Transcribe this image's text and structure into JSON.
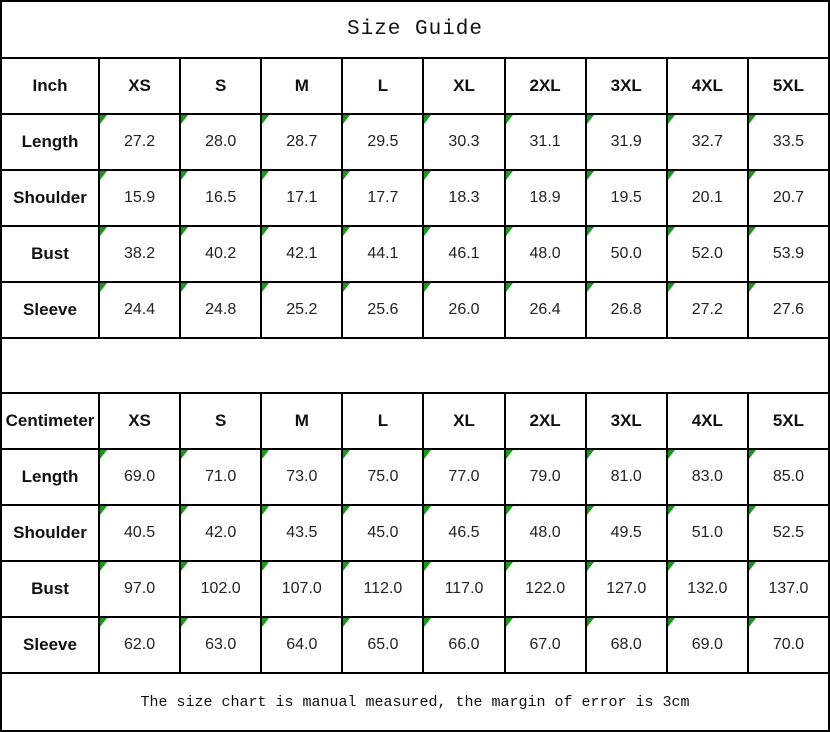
{
  "title": "Size Guide",
  "footer_note": "The size chart is manual measured, the margin of error is 3cm",
  "sizes": [
    "XS",
    "S",
    "M",
    "L",
    "XL",
    "2XL",
    "3XL",
    "4XL",
    "5XL"
  ],
  "inch_table": {
    "unit_label": "Inch",
    "rows": [
      {
        "label": "Length",
        "values": [
          "27.2",
          "28.0",
          "28.7",
          "29.5",
          "30.3",
          "31.1",
          "31.9",
          "32.7",
          "33.5"
        ]
      },
      {
        "label": "Shoulder",
        "values": [
          "15.9",
          "16.5",
          "17.1",
          "17.7",
          "18.3",
          "18.9",
          "19.5",
          "20.1",
          "20.7"
        ]
      },
      {
        "label": "Bust",
        "values": [
          "38.2",
          "40.2",
          "42.1",
          "44.1",
          "46.1",
          "48.0",
          "50.0",
          "52.0",
          "53.9"
        ]
      },
      {
        "label": "Sleeve",
        "values": [
          "24.4",
          "24.8",
          "25.2",
          "25.6",
          "26.0",
          "26.4",
          "26.8",
          "27.2",
          "27.6"
        ]
      }
    ]
  },
  "cm_table": {
    "unit_label": "Centimeter",
    "rows": [
      {
        "label": "Length",
        "values": [
          "69.0",
          "71.0",
          "73.0",
          "75.0",
          "77.0",
          "79.0",
          "81.0",
          "83.0",
          "85.0"
        ]
      },
      {
        "label": "Shoulder",
        "values": [
          "40.5",
          "42.0",
          "43.5",
          "45.0",
          "46.5",
          "48.0",
          "49.5",
          "51.0",
          "52.5"
        ]
      },
      {
        "label": "Bust",
        "values": [
          "97.0",
          "102.0",
          "107.0",
          "112.0",
          "117.0",
          "122.0",
          "127.0",
          "132.0",
          "137.0"
        ]
      },
      {
        "label": "Sleeve",
        "values": [
          "62.0",
          "63.0",
          "64.0",
          "65.0",
          "66.0",
          "67.0",
          "68.0",
          "69.0",
          "70.0"
        ]
      }
    ]
  },
  "colors": {
    "border": "#000000",
    "stored_as_text_indicator_green": "#1e961e",
    "value_text": "#222222",
    "heading_text": "#111111"
  },
  "icons": {
    "stored_as_text_indicator": "green-corner-triangle"
  },
  "chart_data": [
    {
      "type": "table",
      "title": "Size Guide",
      "columns": [
        "Inch",
        "XS",
        "S",
        "M",
        "L",
        "XL",
        "2XL",
        "3XL",
        "4XL",
        "5XL"
      ],
      "rows": [
        [
          "Length",
          27.2,
          28.0,
          28.7,
          29.5,
          30.3,
          31.1,
          31.9,
          32.7,
          33.5
        ],
        [
          "Shoulder",
          15.9,
          16.5,
          17.1,
          17.7,
          18.3,
          18.9,
          19.5,
          20.1,
          20.7
        ],
        [
          "Bust",
          38.2,
          40.2,
          42.1,
          44.1,
          46.1,
          48.0,
          50.0,
          52.0,
          53.9
        ],
        [
          "Sleeve",
          24.4,
          24.8,
          25.2,
          25.6,
          26.0,
          26.4,
          26.8,
          27.2,
          27.6
        ]
      ]
    },
    {
      "type": "table",
      "title": "Size Guide",
      "columns": [
        "Centimeter",
        "XS",
        "S",
        "M",
        "L",
        "XL",
        "2XL",
        "3XL",
        "4XL",
        "5XL"
      ],
      "rows": [
        [
          "Length",
          69.0,
          71.0,
          73.0,
          75.0,
          77.0,
          79.0,
          81.0,
          83.0,
          85.0
        ],
        [
          "Shoulder",
          40.5,
          42.0,
          43.5,
          45.0,
          46.5,
          48.0,
          49.5,
          51.0,
          52.5
        ],
        [
          "Bust",
          97.0,
          102.0,
          107.0,
          112.0,
          117.0,
          122.0,
          127.0,
          132.0,
          137.0
        ],
        [
          "Sleeve",
          62.0,
          63.0,
          64.0,
          65.0,
          66.0,
          67.0,
          68.0,
          69.0,
          70.0
        ]
      ],
      "note": "The size chart is manual measured, the margin of error is 3cm"
    }
  ]
}
